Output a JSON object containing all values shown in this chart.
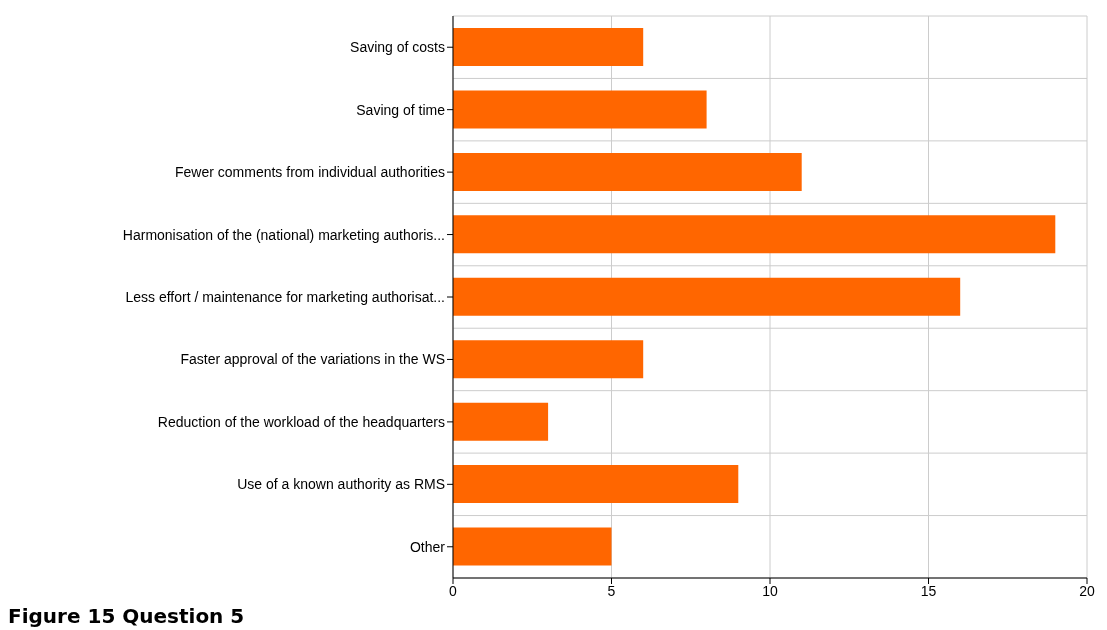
{
  "chart_data": {
    "type": "bar",
    "orientation": "horizontal",
    "title": "Figure 15 Question 5",
    "categories": [
      "Saving of costs",
      "Saving of time",
      "Fewer comments from individual authorities",
      "Harmonisation of the (national) marketing authoris...",
      "Less effort / maintenance for marketing authorisat...",
      "Faster approval of the variations in the WS",
      "Reduction of the workload of the headquarters",
      "Use of a known authority as RMS",
      "Other"
    ],
    "values": [
      6,
      8,
      11,
      19,
      16,
      6,
      3,
      9,
      5
    ],
    "color": "#ff6600",
    "xlim": [
      0,
      20
    ],
    "xticks": [
      0,
      5,
      10,
      15,
      20
    ],
    "grid": true
  }
}
